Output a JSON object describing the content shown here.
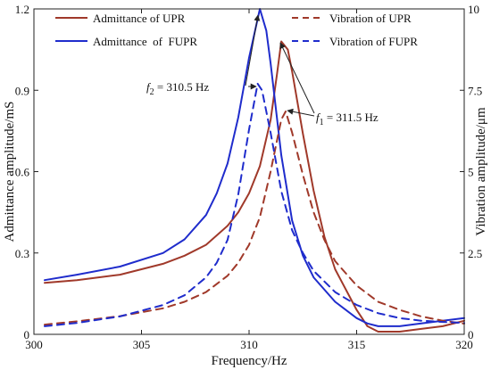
{
  "chart_data": {
    "type": "line",
    "xlabel": "Frequency/Hz",
    "ylabel_left": "Admittance amplitude/mS",
    "ylabel_right": "Vibration amplitude/μm",
    "xlim": [
      300,
      320
    ],
    "ylim_left": [
      0,
      1.2
    ],
    "ylim_right": [
      0,
      10
    ],
    "xticks": [
      "300",
      "305",
      "310",
      "315",
      "320"
    ],
    "yticks_left": [
      "0",
      "0.3",
      "0.6",
      "0.9",
      "1.2"
    ],
    "yticks_right": [
      "0",
      "2.5",
      "5",
      "7.5",
      "10"
    ],
    "grid": false,
    "legend_placement": "top",
    "series": [
      {
        "name": "Admittance of UPR",
        "axis": "left",
        "color": "#a0392a",
        "dash": "solid",
        "points": [
          [
            300.5,
            0.19
          ],
          [
            302,
            0.2
          ],
          [
            304,
            0.22
          ],
          [
            306,
            0.26
          ],
          [
            307,
            0.29
          ],
          [
            308,
            0.33
          ],
          [
            309,
            0.4
          ],
          [
            309.5,
            0.45
          ],
          [
            310,
            0.52
          ],
          [
            310.5,
            0.62
          ],
          [
            311,
            0.79
          ],
          [
            311.3,
            0.96
          ],
          [
            311.5,
            1.08
          ],
          [
            311.8,
            1.05
          ],
          [
            312,
            0.97
          ],
          [
            312.5,
            0.74
          ],
          [
            313,
            0.53
          ],
          [
            313.5,
            0.36
          ],
          [
            314,
            0.24
          ],
          [
            315,
            0.09
          ],
          [
            315.5,
            0.03
          ],
          [
            316,
            0.01
          ],
          [
            317,
            0.01
          ],
          [
            318,
            0.02
          ],
          [
            319,
            0.03
          ],
          [
            320,
            0.05
          ]
        ]
      },
      {
        "name": "Admittance  of  FUPR",
        "axis": "left",
        "color": "#1f2ccc",
        "dash": "solid",
        "points": [
          [
            300.5,
            0.2
          ],
          [
            302,
            0.22
          ],
          [
            304,
            0.25
          ],
          [
            306,
            0.3
          ],
          [
            307,
            0.35
          ],
          [
            308,
            0.44
          ],
          [
            308.5,
            0.52
          ],
          [
            309,
            0.63
          ],
          [
            309.5,
            0.8
          ],
          [
            310,
            1.02
          ],
          [
            310.5,
            1.2
          ],
          [
            310.8,
            1.12
          ],
          [
            311,
            1.0
          ],
          [
            311.5,
            0.66
          ],
          [
            312,
            0.42
          ],
          [
            312.5,
            0.29
          ],
          [
            313,
            0.21
          ],
          [
            314,
            0.12
          ],
          [
            315,
            0.06
          ],
          [
            315.5,
            0.04
          ],
          [
            316,
            0.03
          ],
          [
            317,
            0.03
          ],
          [
            318,
            0.04
          ],
          [
            319,
            0.05
          ],
          [
            320,
            0.06
          ]
        ]
      },
      {
        "name": "Vibration of UPR",
        "axis": "right",
        "color": "#a0392a",
        "dash": "dashed",
        "points": [
          [
            300.5,
            0.3
          ],
          [
            302,
            0.4
          ],
          [
            304,
            0.56
          ],
          [
            306,
            0.8
          ],
          [
            307,
            1.0
          ],
          [
            308,
            1.3
          ],
          [
            309,
            1.8
          ],
          [
            309.5,
            2.2
          ],
          [
            310,
            2.75
          ],
          [
            310.5,
            3.6
          ],
          [
            311,
            5.0
          ],
          [
            311.5,
            6.6
          ],
          [
            311.7,
            6.85
          ],
          [
            312,
            6.2
          ],
          [
            312.5,
            4.9
          ],
          [
            313,
            3.75
          ],
          [
            313.5,
            2.9
          ],
          [
            314,
            2.25
          ],
          [
            315,
            1.5
          ],
          [
            316,
            1.0
          ],
          [
            317,
            0.75
          ],
          [
            318,
            0.55
          ],
          [
            319,
            0.42
          ],
          [
            320,
            0.33
          ]
        ]
      },
      {
        "name": "Vibration of FUPR",
        "axis": "right",
        "color": "#1f2ccc",
        "dash": "dashed",
        "points": [
          [
            300.5,
            0.25
          ],
          [
            302,
            0.35
          ],
          [
            304,
            0.55
          ],
          [
            306,
            0.9
          ],
          [
            307,
            1.2
          ],
          [
            308,
            1.75
          ],
          [
            308.5,
            2.2
          ],
          [
            309,
            2.9
          ],
          [
            309.5,
            4.3
          ],
          [
            310,
            6.3
          ],
          [
            310.4,
            7.7
          ],
          [
            310.6,
            7.5
          ],
          [
            311,
            6.2
          ],
          [
            311.5,
            4.4
          ],
          [
            312,
            3.2
          ],
          [
            312.5,
            2.5
          ],
          [
            313,
            1.95
          ],
          [
            314,
            1.3
          ],
          [
            315,
            0.9
          ],
          [
            316,
            0.65
          ],
          [
            317,
            0.5
          ],
          [
            318,
            0.42
          ],
          [
            319,
            0.38
          ],
          [
            320,
            0.35
          ]
        ]
      }
    ],
    "annotations": [
      {
        "prefix": "f",
        "sub": "2",
        "suffix": " = 310.5 Hz",
        "target": "f2-peaks"
      },
      {
        "prefix": "f",
        "sub": "1",
        "suffix": " = 311.5 Hz",
        "target": "f1-peaks"
      }
    ]
  }
}
